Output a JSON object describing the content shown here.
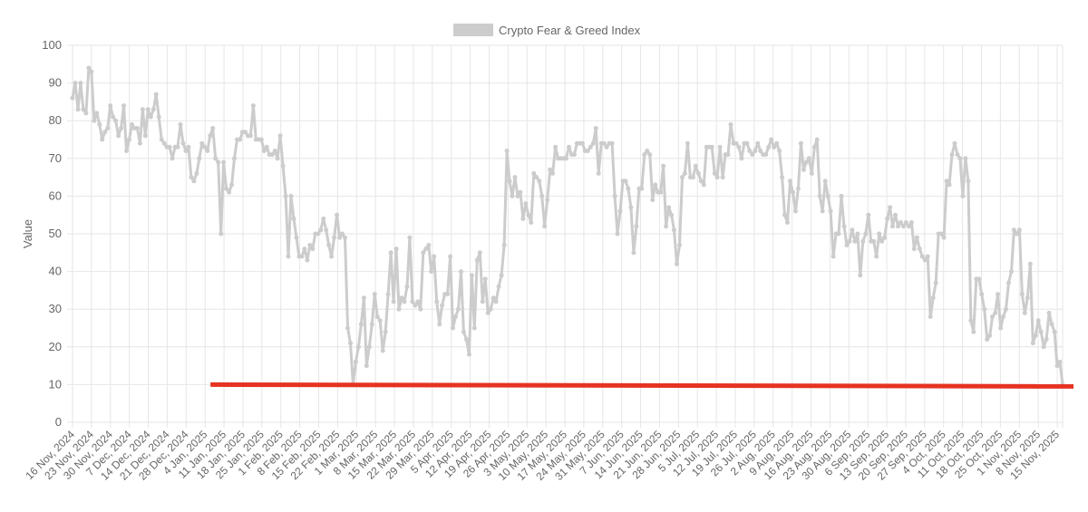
{
  "chart_data": {
    "type": "line",
    "title": "",
    "xlabel": "",
    "ylabel": "Value",
    "ylim": [
      0,
      100
    ],
    "yticks": [
      0,
      10,
      20,
      30,
      40,
      50,
      60,
      70,
      80,
      90,
      100
    ],
    "x_start": "2024-11-16",
    "x_end": "2025-11-17",
    "x_tick_labels": [
      "16 Nov, 2024",
      "23 Nov, 2024",
      "30 Nov, 2024",
      "7 Dec, 2024",
      "14 Dec, 2024",
      "21 Dec, 2024",
      "28 Dec, 2024",
      "4 Jan, 2025",
      "11 Jan, 2025",
      "18 Jan, 2025",
      "25 Jan, 2025",
      "1 Feb, 2025",
      "8 Feb, 2025",
      "15 Feb, 2025",
      "22 Feb, 2025",
      "1 Mar, 2025",
      "8 Mar, 2025",
      "15 Mar, 2025",
      "22 Mar, 2025",
      "29 Mar, 2025",
      "5 Apr, 2025",
      "12 Apr, 2025",
      "19 Apr, 2025",
      "26 Apr, 2025",
      "3 May, 2025",
      "10 May, 2025",
      "17 May, 2025",
      "24 May, 2025",
      "31 May, 2025",
      "7 Jun, 2025",
      "14 Jun, 2025",
      "21 Jun, 2025",
      "28 Jun, 2025",
      "5 Jul, 2025",
      "12 Jul, 2025",
      "19 Jul, 2025",
      "26 Jul, 2025",
      "2 Aug, 2025",
      "9 Aug, 2025",
      "16 Aug, 2025",
      "23 Aug, 2025",
      "30 Aug, 2025",
      "6 Sep, 2025",
      "13 Sep, 2025",
      "20 Sep, 2025",
      "27 Sep, 2025",
      "4 Oct, 2025",
      "11 Oct, 2025",
      "18 Oct, 2025",
      "25 Oct, 2025",
      "1 Nov, 2025",
      "8 Nov, 2025",
      "15 Nov, 2025"
    ],
    "legend": {
      "position": "top",
      "label": "Crypto Fear & Greed Index"
    },
    "grid": true,
    "series": [
      {
        "name": "Crypto Fear & Greed Index",
        "color": "#cccccc",
        "values": [
          86,
          90,
          83,
          90,
          83,
          82,
          94,
          93,
          80,
          82,
          79,
          75,
          77,
          78,
          84,
          81,
          80,
          76,
          78,
          84,
          72,
          75,
          79,
          78,
          78,
          74,
          83,
          76,
          83,
          81,
          83,
          87,
          81,
          75,
          74,
          73,
          73,
          70,
          73,
          73,
          79,
          74,
          72,
          73,
          65,
          64,
          66,
          70,
          74,
          73,
          72,
          76,
          78,
          70,
          69,
          50,
          69,
          62,
          61,
          63,
          70,
          75,
          75,
          77,
          77,
          76,
          76,
          84,
          75,
          75,
          75,
          72,
          73,
          71,
          71,
          72,
          70,
          76,
          68,
          60,
          44,
          60,
          54,
          49,
          44,
          44,
          46,
          43,
          47,
          46,
          50,
          50,
          51,
          54,
          51,
          47,
          44,
          49,
          55,
          49,
          50,
          49,
          25,
          21,
          10,
          16,
          20,
          26,
          33,
          15,
          20,
          26,
          34,
          28,
          27,
          19,
          24,
          34,
          45,
          32,
          46,
          30,
          33,
          32,
          36,
          49,
          32,
          31,
          32,
          30,
          45,
          46,
          47,
          40,
          44,
          32,
          26,
          31,
          34,
          34,
          44,
          25,
          28,
          30,
          40,
          24,
          22,
          18,
          39,
          25,
          43,
          45,
          32,
          38,
          29,
          30,
          33,
          32,
          36,
          39,
          47,
          72,
          64,
          60,
          65,
          60,
          61,
          54,
          58,
          55,
          53,
          66,
          65,
          64,
          60,
          52,
          59,
          67,
          66,
          73,
          70,
          70,
          70,
          70,
          73,
          71,
          71,
          74,
          74,
          74,
          72,
          72,
          73,
          74,
          78,
          66,
          74,
          74,
          73,
          74,
          74,
          60,
          50,
          56,
          64,
          64,
          62,
          57,
          45,
          52,
          62,
          62,
          71,
          72,
          71,
          59,
          63,
          61,
          61,
          68,
          52,
          57,
          55,
          51,
          42,
          47,
          65,
          66,
          74,
          65,
          65,
          68,
          66,
          64,
          63,
          73,
          73,
          73,
          66,
          65,
          73,
          65,
          71,
          71,
          79,
          74,
          74,
          73,
          70,
          74,
          74,
          72,
          71,
          72,
          74,
          72,
          71,
          71,
          73,
          75,
          73,
          74,
          72,
          65,
          55,
          53,
          64,
          61,
          56,
          62,
          74,
          67,
          69,
          70,
          66,
          73,
          75,
          60,
          56,
          64,
          60,
          56,
          44,
          50,
          50,
          60,
          52,
          47,
          48,
          51,
          48,
          50,
          39,
          48,
          50,
          55,
          48,
          48,
          44,
          50,
          48,
          49,
          54,
          57,
          52,
          55,
          52,
          53,
          52,
          53,
          52,
          53,
          46,
          49,
          46,
          44,
          43,
          44,
          28,
          33,
          37,
          50,
          50,
          49,
          64,
          63,
          71,
          74,
          71,
          70,
          60,
          70,
          64,
          27,
          24,
          38,
          38,
          34,
          30,
          22,
          23,
          28,
          29,
          34,
          25,
          28,
          30,
          37,
          40,
          51,
          50,
          51,
          34,
          29,
          33,
          42,
          21,
          23,
          27,
          24,
          20,
          22,
          29,
          26,
          24,
          15,
          16,
          10
        ]
      }
    ],
    "annotations": [
      {
        "type": "horizontal-line",
        "y": 10,
        "x_from": "2025-01-06",
        "x_to": "2025-11-17",
        "color": "#e63322"
      }
    ]
  }
}
